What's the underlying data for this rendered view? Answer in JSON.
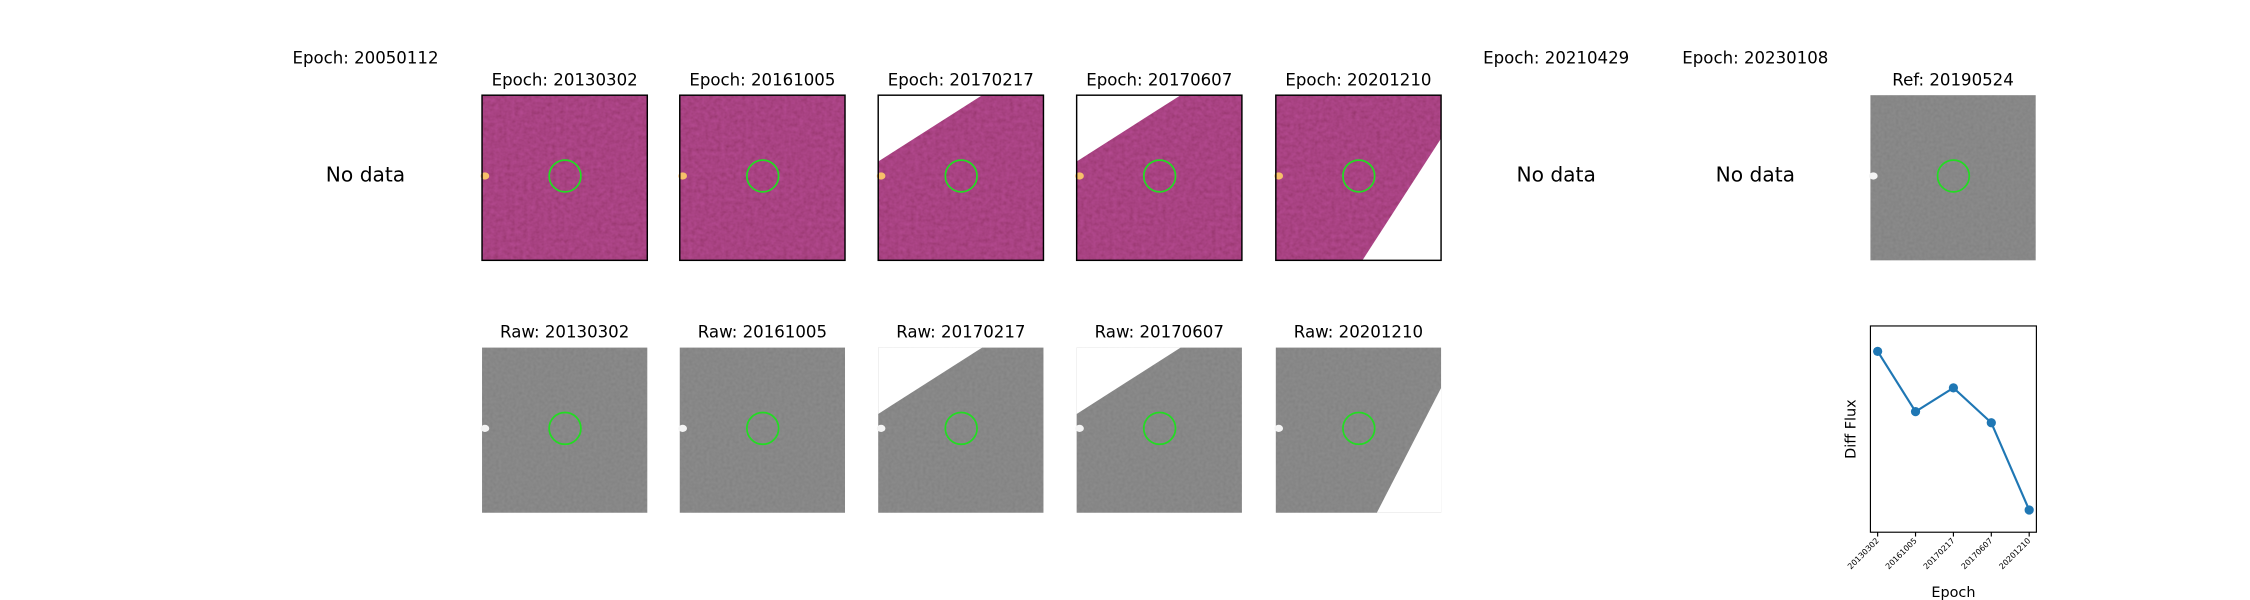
{
  "top_row": [
    {
      "title": "Epoch: 20050112",
      "note": "No data"
    },
    {
      "title": "Epoch: 20130302"
    },
    {
      "title": "Epoch: 20161005"
    },
    {
      "title": "Epoch: 20170217"
    },
    {
      "title": "Epoch: 20170607"
    },
    {
      "title": "Epoch: 20201210"
    },
    {
      "title": "Epoch: 20210429",
      "note": "No data"
    },
    {
      "title": "Epoch: 20230108",
      "note": "No data"
    }
  ],
  "reference": {
    "title": "Ref: 20190524"
  },
  "bottom_row": [
    {
      "title": "Raw: 20130302"
    },
    {
      "title": "Raw: 20161005"
    },
    {
      "title": "Raw: 20170217"
    },
    {
      "title": "Raw: 20170607"
    },
    {
      "title": "Raw: 20201210"
    }
  ],
  "chart_data": {
    "type": "line",
    "categories": [
      "20130302",
      "20161005",
      "20170217",
      "20170607",
      "20201210"
    ],
    "values": [
      1,
      0.62,
      0.77,
      0.55,
      0
    ],
    "color": "#1f77b4",
    "xlabel": "Epoch",
    "ylabel": "Diff Flux",
    "ylim": [
      -0.14,
      1.16
    ]
  }
}
